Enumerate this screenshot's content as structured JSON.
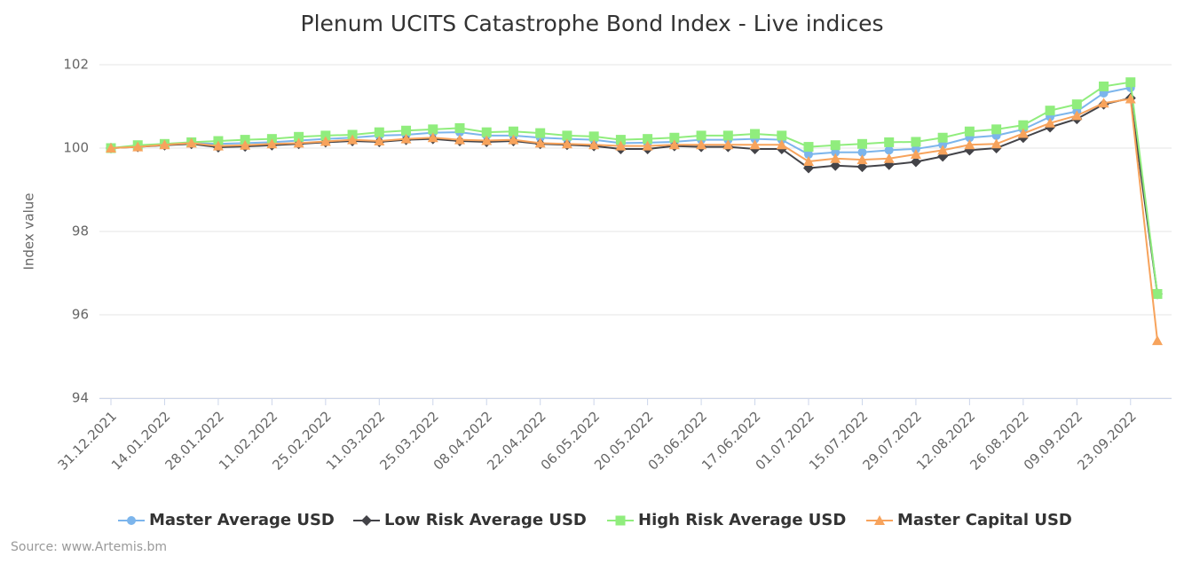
{
  "chart_data": {
    "type": "line",
    "title": "Plenum UCITS Catastrophe Bond Index - Live indices",
    "y_label": "Index value",
    "source": "Source: www.Artemis.bm",
    "categories": [
      "31.12.2021",
      null,
      "14.01.2022",
      null,
      "28.01.2022",
      null,
      "11.02.2022",
      null,
      "25.02.2022",
      null,
      "11.03.2022",
      null,
      "25.03.2022",
      null,
      "08.04.2022",
      null,
      "22.04.2022",
      null,
      "06.05.2022",
      null,
      "20.05.2022",
      null,
      "03.06.2022",
      null,
      "17.06.2022",
      null,
      "01.07.2022",
      null,
      "15.07.2022",
      null,
      "29.07.2022",
      null,
      "12.08.2022",
      null,
      "26.08.2022",
      null,
      "09.09.2022",
      null,
      "23.09.2022",
      null
    ],
    "ylim": [
      94,
      102
    ],
    "yticks": [
      94,
      96,
      98,
      100,
      102
    ],
    "grid": true,
    "legend": "bottom",
    "series": [
      {
        "name": "Master Average USD",
        "color": "#7cb5ec",
        "marker": "circle",
        "values": [
          100.0,
          100.05,
          100.1,
          100.12,
          100.1,
          100.12,
          100.14,
          100.18,
          100.22,
          100.25,
          100.3,
          100.32,
          100.37,
          100.38,
          100.3,
          100.3,
          100.25,
          100.22,
          100.2,
          100.12,
          100.13,
          100.15,
          100.2,
          100.2,
          100.22,
          100.2,
          99.85,
          99.9,
          99.9,
          99.95,
          99.98,
          100.08,
          100.25,
          100.3,
          100.45,
          100.75,
          100.88,
          101.32,
          101.45,
          96.5
        ]
      },
      {
        "name": "Low Risk Average USD",
        "color": "#434348",
        "marker": "diamond",
        "values": [
          100.0,
          100.03,
          100.07,
          100.1,
          100.02,
          100.04,
          100.07,
          100.1,
          100.14,
          100.17,
          100.15,
          100.2,
          100.22,
          100.17,
          100.15,
          100.17,
          100.1,
          100.08,
          100.05,
          99.98,
          99.98,
          100.05,
          100.03,
          100.03,
          99.98,
          99.98,
          99.52,
          99.58,
          99.55,
          99.6,
          99.67,
          99.8,
          99.95,
          100.0,
          100.25,
          100.5,
          100.7,
          101.05,
          101.2,
          96.5
        ]
      },
      {
        "name": "High Risk Average USD",
        "color": "#90ed7d",
        "marker": "square",
        "values": [
          100.0,
          100.07,
          100.1,
          100.14,
          100.17,
          100.2,
          100.22,
          100.27,
          100.3,
          100.32,
          100.38,
          100.42,
          100.45,
          100.48,
          100.38,
          100.4,
          100.36,
          100.3,
          100.28,
          100.2,
          100.22,
          100.25,
          100.3,
          100.3,
          100.34,
          100.3,
          100.03,
          100.07,
          100.1,
          100.14,
          100.15,
          100.25,
          100.4,
          100.45,
          100.55,
          100.9,
          101.05,
          101.48,
          101.58,
          96.5
        ]
      },
      {
        "name": "Master Capital USD",
        "color": "#f7a35c",
        "marker": "triangle",
        "values": [
          100.0,
          100.03,
          100.08,
          100.12,
          100.05,
          100.07,
          100.1,
          100.12,
          100.16,
          100.2,
          100.17,
          100.22,
          100.25,
          100.2,
          100.18,
          100.2,
          100.12,
          100.1,
          100.08,
          100.05,
          100.05,
          100.08,
          100.08,
          100.08,
          100.08,
          100.08,
          99.68,
          99.75,
          99.72,
          99.75,
          99.85,
          99.95,
          100.08,
          100.1,
          100.35,
          100.6,
          100.78,
          101.08,
          101.18,
          95.38
        ]
      }
    ]
  }
}
